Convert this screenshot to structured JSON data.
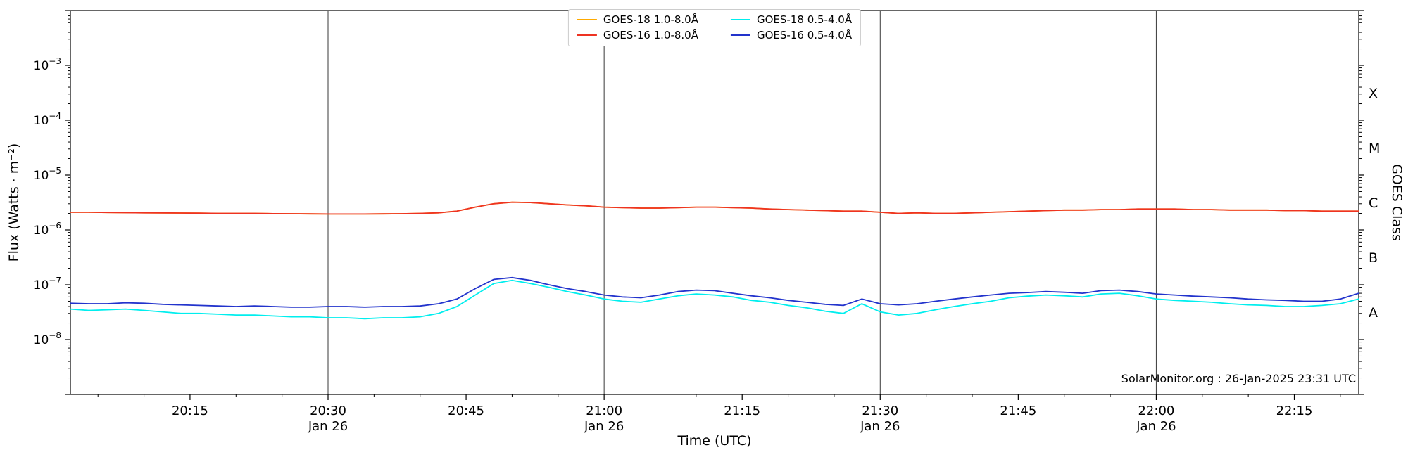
{
  "chart_data": {
    "type": "line",
    "title": "",
    "xlabel": "Time (UTC)",
    "ylabel": "Flux (Watts · m⁻²)",
    "ylabel_right": "GOES Class",
    "annotation": "SolarMonitor.org : 26-Jan-2025 23:31 UTC",
    "grid": "vertical-date-lines-only",
    "legend_position": "top-center",
    "xlim_minutes_after_2000utc": [
      2,
      142
    ],
    "ylim": [
      1e-09,
      0.01
    ],
    "x_major_ticks": [
      {
        "t": 15,
        "label": "20:15"
      },
      {
        "t": 30,
        "label": "20:30",
        "sublabel": "Jan 26",
        "date_line": true
      },
      {
        "t": 45,
        "label": "20:45"
      },
      {
        "t": 60,
        "label": "21:00",
        "sublabel": "Jan 26",
        "date_line": true
      },
      {
        "t": 75,
        "label": "21:15"
      },
      {
        "t": 90,
        "label": "21:30",
        "sublabel": "Jan 26",
        "date_line": true
      },
      {
        "t": 105,
        "label": "21:45"
      },
      {
        "t": 120,
        "label": "22:00",
        "sublabel": "Jan 26",
        "date_line": true
      },
      {
        "t": 135,
        "label": "22:15"
      }
    ],
    "x_minor_step_minutes": 5,
    "y_label_exponents": [
      -3,
      -4,
      -5,
      -6,
      -7,
      -8
    ],
    "goes_classes": [
      {
        "label": "X",
        "flux_center": 0.000316
      },
      {
        "label": "M",
        "flux_center": 3.16e-05
      },
      {
        "label": "C",
        "flux_center": 3.16e-06
      },
      {
        "label": "B",
        "flux_center": 3.16e-07
      },
      {
        "label": "A",
        "flux_center": 3.16e-08
      }
    ],
    "x_minutes": [
      2,
      4,
      6,
      8,
      10,
      12,
      14,
      16,
      18,
      20,
      22,
      24,
      26,
      28,
      30,
      32,
      34,
      36,
      38,
      40,
      42,
      44,
      46,
      48,
      50,
      52,
      54,
      56,
      58,
      60,
      62,
      64,
      66,
      68,
      70,
      72,
      74,
      76,
      78,
      80,
      82,
      84,
      86,
      88,
      90,
      92,
      94,
      96,
      98,
      100,
      102,
      104,
      106,
      108,
      110,
      112,
      114,
      116,
      118,
      120,
      122,
      124,
      126,
      128,
      130,
      132,
      134,
      136,
      138,
      140,
      142
    ],
    "series": [
      {
        "name": "GOES-18 1.0-8.0Å",
        "color": "#ffaa00",
        "scale": 1e-06,
        "values": [
          2.1,
          2.1,
          2.08,
          2.06,
          2.05,
          2.04,
          2.03,
          2.02,
          2.0,
          2.0,
          2.0,
          1.98,
          1.97,
          1.96,
          1.95,
          1.95,
          1.95,
          1.96,
          1.97,
          2.0,
          2.05,
          2.2,
          2.6,
          3.0,
          3.2,
          3.15,
          3.0,
          2.85,
          2.75,
          2.6,
          2.55,
          2.5,
          2.5,
          2.55,
          2.6,
          2.6,
          2.55,
          2.5,
          2.4,
          2.35,
          2.3,
          2.25,
          2.2,
          2.2,
          2.1,
          2.0,
          2.05,
          2.0,
          2.0,
          2.05,
          2.1,
          2.15,
          2.2,
          2.25,
          2.3,
          2.3,
          2.35,
          2.35,
          2.4,
          2.4,
          2.4,
          2.35,
          2.35,
          2.3,
          2.3,
          2.3,
          2.25,
          2.25,
          2.2,
          2.2,
          2.2
        ]
      },
      {
        "name": "GOES-16 1.0-8.0Å",
        "color": "#ee3322",
        "scale": 1e-06,
        "values": [
          2.1,
          2.1,
          2.08,
          2.06,
          2.05,
          2.04,
          2.03,
          2.02,
          2.0,
          2.0,
          2.0,
          1.98,
          1.97,
          1.96,
          1.95,
          1.95,
          1.95,
          1.96,
          1.97,
          2.0,
          2.05,
          2.2,
          2.6,
          3.0,
          3.2,
          3.15,
          3.0,
          2.85,
          2.75,
          2.6,
          2.55,
          2.5,
          2.5,
          2.55,
          2.6,
          2.6,
          2.55,
          2.5,
          2.4,
          2.35,
          2.3,
          2.25,
          2.2,
          2.2,
          2.1,
          2.0,
          2.05,
          2.0,
          2.0,
          2.05,
          2.1,
          2.15,
          2.2,
          2.25,
          2.3,
          2.3,
          2.35,
          2.35,
          2.4,
          2.4,
          2.4,
          2.35,
          2.35,
          2.3,
          2.3,
          2.3,
          2.25,
          2.25,
          2.2,
          2.2,
          2.2
        ]
      },
      {
        "name": "GOES-18 0.5-4.0Å",
        "color": "#00eeee",
        "scale": 1e-08,
        "values": [
          3.6,
          3.4,
          3.5,
          3.6,
          3.4,
          3.2,
          3.0,
          3.0,
          2.9,
          2.8,
          2.8,
          2.7,
          2.6,
          2.6,
          2.5,
          2.5,
          2.4,
          2.5,
          2.5,
          2.6,
          3.0,
          4.0,
          6.5,
          10.5,
          12.0,
          10.5,
          9.0,
          7.5,
          6.5,
          5.5,
          5.0,
          4.8,
          5.5,
          6.3,
          6.8,
          6.5,
          6.0,
          5.2,
          4.8,
          4.2,
          3.8,
          3.3,
          3.0,
          4.5,
          3.2,
          2.8,
          3.0,
          3.5,
          4.0,
          4.5,
          5.0,
          5.8,
          6.2,
          6.5,
          6.3,
          6.0,
          6.8,
          7.0,
          6.3,
          5.5,
          5.2,
          5.0,
          4.8,
          4.5,
          4.3,
          4.2,
          4.0,
          4.0,
          4.2,
          4.5,
          5.5
        ]
      },
      {
        "name": "GOES-16 0.5-4.0Å",
        "color": "#2233cc",
        "scale": 1e-08,
        "values": [
          4.6,
          4.5,
          4.5,
          4.7,
          4.6,
          4.4,
          4.3,
          4.2,
          4.1,
          4.0,
          4.1,
          4.0,
          3.9,
          3.9,
          4.0,
          4.0,
          3.9,
          4.0,
          4.0,
          4.1,
          4.5,
          5.5,
          8.5,
          12.5,
          13.5,
          12.0,
          10.0,
          8.5,
          7.5,
          6.5,
          6.0,
          5.8,
          6.5,
          7.5,
          8.0,
          7.8,
          7.0,
          6.3,
          5.8,
          5.2,
          4.8,
          4.4,
          4.2,
          5.5,
          4.5,
          4.3,
          4.5,
          5.0,
          5.5,
          6.0,
          6.5,
          7.0,
          7.2,
          7.5,
          7.3,
          7.0,
          7.8,
          8.0,
          7.5,
          6.8,
          6.5,
          6.2,
          6.0,
          5.8,
          5.5,
          5.3,
          5.2,
          5.0,
          5.0,
          5.5,
          7.0
        ]
      }
    ]
  }
}
